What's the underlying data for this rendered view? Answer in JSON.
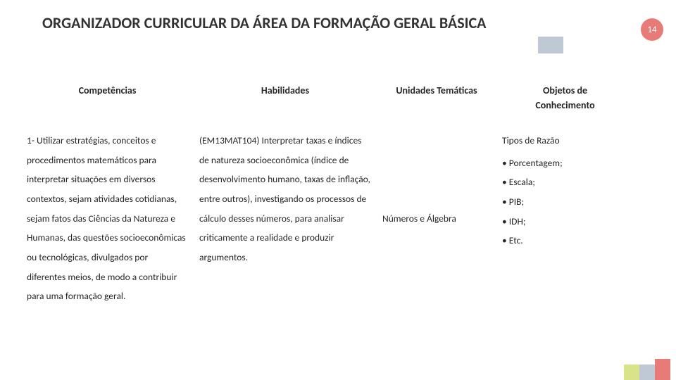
{
  "title": "ORGANIZADOR CURRICULAR DA ÁREA DA FORMAÇÃO GERAL BÁSICA",
  "page_number": "14",
  "colors": {
    "accent_red": "#e87b77",
    "deco_green": "#d9e48a",
    "deco_gray": "#bfc9d6",
    "text": "#262626",
    "title_text": "#333333"
  },
  "table": {
    "headers": {
      "col1": "Competências",
      "col2": "Habilidades",
      "col3": "Unidades Temáticas",
      "col4_line1": "Objetos de",
      "col4_line2": "Conhecimento"
    },
    "row": {
      "competencias": "1- Utilizar estratégias, conceitos e procedimentos matemáticos para interpretar situações em diversos contextos, sejam atividades cotidianas, sejam fatos das Ciências da Natureza e Humanas, das questões socioeconômicas ou tecnológicas, divulgados por diferentes meios, de modo a contribuir para uma formação geral.",
      "habilidades": "(EM13MAT104) Interpretar taxas e índices de natureza socioeconômica (índice de desenvolvimento humano, taxas de inflação, entre outros), investigando os processos de cálculo desses números, para analisar criticamente a realidade e produzir argumentos.",
      "unidades": "Números e Álgebra",
      "objetos": {
        "lead": "Tipos de Razão",
        "items": [
          "Porcentagem;",
          "Escala;",
          "PIB;",
          "IDH;",
          "Etc."
        ]
      }
    }
  }
}
